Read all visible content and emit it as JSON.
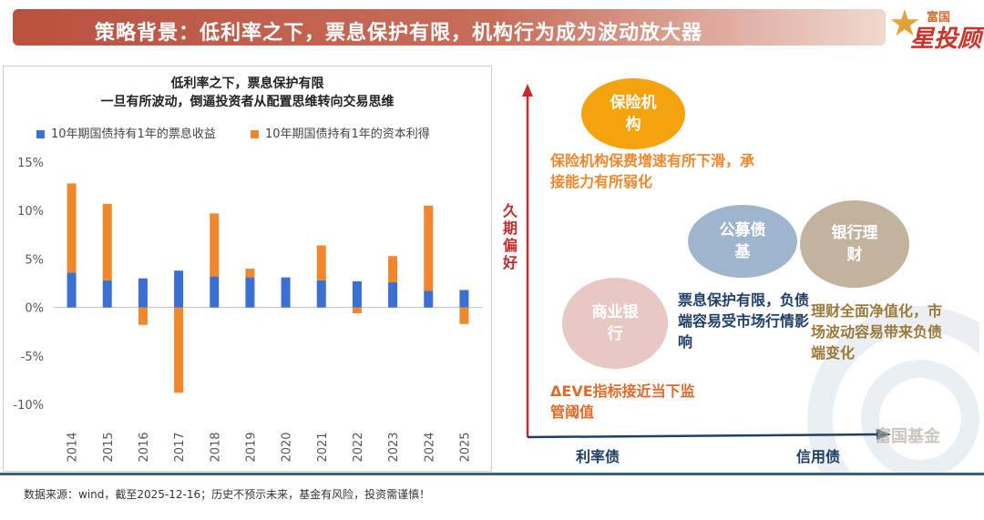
{
  "header": {
    "title": "策略背景：低利率之下，票息保护有限，机构行为成为波动放大器",
    "logo_small": "富国",
    "logo_big": "星投顾"
  },
  "chart_title": {
    "line1": "低利率之下，票息保护有限",
    "line2": "一旦有所波动，倒逼投资者从配置思维转向交易思维"
  },
  "colors": {
    "coupon": "#3a6fd4",
    "capital": "#f0872d",
    "accent": "#c8292b",
    "navy": "#1f3f68"
  },
  "chart_data": {
    "type": "bar",
    "stacked": true,
    "categories": [
      "2014",
      "2015",
      "2016",
      "2017",
      "2018",
      "2019",
      "2020",
      "2021",
      "2022",
      "2023",
      "2024",
      "2025"
    ],
    "series": [
      {
        "name": "10年期国债持有1年的票息收益",
        "values": [
          3.6,
          2.8,
          3.0,
          3.8,
          3.2,
          3.1,
          3.1,
          2.8,
          2.7,
          2.6,
          1.7,
          1.8
        ]
      },
      {
        "name": "10年期国债持有1年的资本利得",
        "values": [
          9.2,
          7.9,
          -1.8,
          -8.8,
          6.5,
          0.9,
          0.0,
          3.6,
          -0.6,
          2.7,
          8.8,
          -1.7
        ]
      }
    ],
    "ylim": [
      -10,
      15
    ],
    "yticks": [
      "15%",
      "10%",
      "5%",
      "0%",
      "-5%",
      "-10%"
    ],
    "xlabel": "",
    "ylabel": ""
  },
  "diagram": {
    "y_axis_label": "久期偏好",
    "x_axis_labels": [
      "利率债",
      "信用债"
    ],
    "bubbles": {
      "insurance": "保险机构",
      "mutual_fund": "公募债基",
      "bank_wm": "银行理财",
      "commercial_bank": "商业银行"
    },
    "annotations": {
      "insurance": "保险机构保费增速有所下滑，承接能力有所弱化",
      "mutual_fund": "票息保护有限，负债端容易受市场行情影响",
      "bank_wm": "理财全面净值化，市场波动容易带来负债端变化",
      "commercial_bank": "ΔEVE指标接近当下监管阈值"
    },
    "watermark": "富国基金"
  },
  "footnote": "数据来源：wind，截至2025-12-16；历史不预示未来，基金有风险，投资需谨慎！"
}
